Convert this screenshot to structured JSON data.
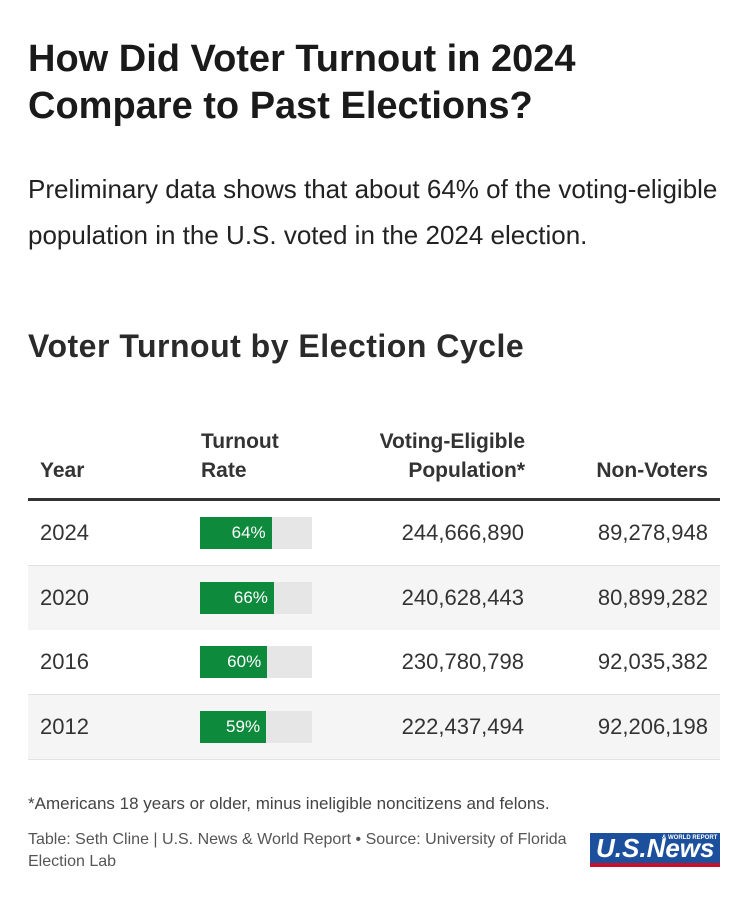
{
  "header": {
    "title": "How Did Voter Turnout in 2024 Compare to Past Elections?",
    "subtitle": "Preliminary data shows that about 64% of the voting-eligible population in the U.S. voted in the 2024 election."
  },
  "table": {
    "title": "Voter Turnout by Election Cycle",
    "columns": [
      "Year",
      "Turnout Rate",
      "Voting-Eligible Population*",
      "Non-Voters"
    ],
    "rows": [
      {
        "year": "2024",
        "rate": 64,
        "rate_label": "64%",
        "population": "244,666,890",
        "non_voters": "89,278,948"
      },
      {
        "year": "2020",
        "rate": 66,
        "rate_label": "66%",
        "population": "240,628,443",
        "non_voters": "80,899,282"
      },
      {
        "year": "2016",
        "rate": 60,
        "rate_label": "60%",
        "population": "230,780,798",
        "non_voters": "92,035,382"
      },
      {
        "year": "2012",
        "rate": 59,
        "rate_label": "59%",
        "population": "222,437,494",
        "non_voters": "92,206,198"
      }
    ]
  },
  "footer": {
    "footnote": "*Americans 18 years or older, minus ineligible noncitizens and felons.",
    "source": "Table: Seth Cline | U.S. News & World Report • Source: University of Florida Election Lab",
    "logo": "U.S.News",
    "logo_sub": "& WORLD REPORT"
  }
}
